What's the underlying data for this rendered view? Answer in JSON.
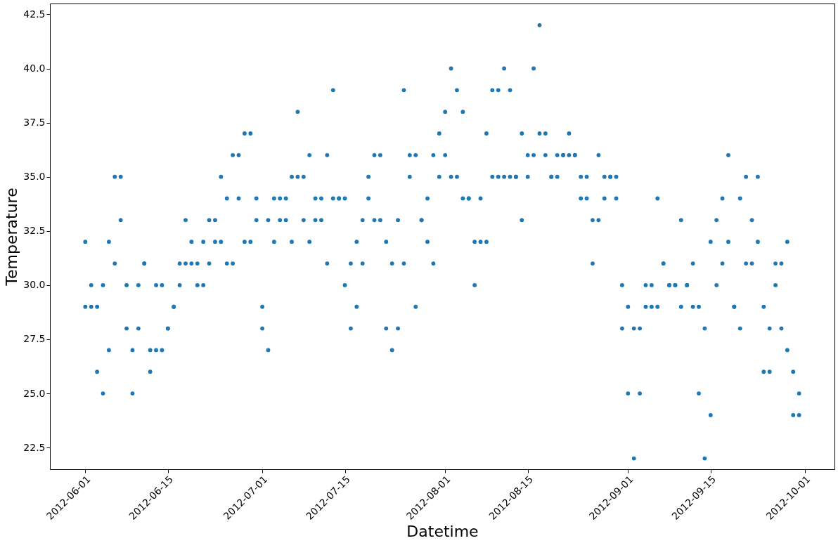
{
  "chart_data": {
    "type": "scatter",
    "xlabel": "Datetime",
    "ylabel": "Temperature",
    "marker": "circle",
    "grid": false,
    "legend": false,
    "xlim": [
      "2012-05-26",
      "2012-10-06"
    ],
    "xticks": [
      "2012-06-01",
      "2012-06-15",
      "2012-07-01",
      "2012-07-15",
      "2012-08-01",
      "2012-08-15",
      "2012-09-01",
      "2012-09-15",
      "2012-10-01"
    ],
    "ylim": [
      21.5,
      43
    ],
    "yticks": [
      {
        "value": 22.5,
        "label": "22.5"
      },
      {
        "value": 25,
        "label": "25.0"
      },
      {
        "value": 27.5,
        "label": "27.5"
      },
      {
        "value": 30,
        "label": "30.0"
      },
      {
        "value": 32.5,
        "label": "32.5"
      },
      {
        "value": 35,
        "label": "35.0"
      },
      {
        "value": 37.5,
        "label": "37.5"
      },
      {
        "value": 40,
        "label": "40.0"
      },
      {
        "value": 42.5,
        "label": "42.5"
      }
    ],
    "series": [
      {
        "color": "#1f77b4",
        "x": [
          "2012-06-01",
          "2012-06-01",
          "2012-06-02",
          "2012-06-02",
          "2012-06-03",
          "2012-06-03",
          "2012-06-04",
          "2012-06-04",
          "2012-06-05",
          "2012-06-05",
          "2012-06-06",
          "2012-06-06",
          "2012-06-07",
          "2012-06-07",
          "2012-06-08",
          "2012-06-08",
          "2012-06-09",
          "2012-06-09",
          "2012-06-10",
          "2012-06-10",
          "2012-06-11",
          "2012-06-11",
          "2012-06-12",
          "2012-06-12",
          "2012-06-13",
          "2012-06-13",
          "2012-06-14",
          "2012-06-14",
          "2012-06-15",
          "2012-06-15",
          "2012-06-16",
          "2012-06-16",
          "2012-06-17",
          "2012-06-17",
          "2012-06-18",
          "2012-06-18",
          "2012-06-19",
          "2012-06-19",
          "2012-06-20",
          "2012-06-20",
          "2012-06-21",
          "2012-06-21",
          "2012-06-22",
          "2012-06-22",
          "2012-06-23",
          "2012-06-23",
          "2012-06-24",
          "2012-06-24",
          "2012-06-25",
          "2012-06-25",
          "2012-06-26",
          "2012-06-26",
          "2012-06-27",
          "2012-06-27",
          "2012-06-28",
          "2012-06-28",
          "2012-06-29",
          "2012-06-29",
          "2012-06-30",
          "2012-06-30",
          "2012-07-01",
          "2012-07-01",
          "2012-07-02",
          "2012-07-02",
          "2012-07-03",
          "2012-07-03",
          "2012-07-04",
          "2012-07-04",
          "2012-07-05",
          "2012-07-05",
          "2012-07-06",
          "2012-07-06",
          "2012-07-07",
          "2012-07-07",
          "2012-07-08",
          "2012-07-08",
          "2012-07-09",
          "2012-07-09",
          "2012-07-10",
          "2012-07-10",
          "2012-07-11",
          "2012-07-11",
          "2012-07-12",
          "2012-07-12",
          "2012-07-13",
          "2012-07-13",
          "2012-07-14",
          "2012-07-14",
          "2012-07-15",
          "2012-07-15",
          "2012-07-16",
          "2012-07-16",
          "2012-07-17",
          "2012-07-17",
          "2012-07-18",
          "2012-07-18",
          "2012-07-19",
          "2012-07-19",
          "2012-07-20",
          "2012-07-20",
          "2012-07-21",
          "2012-07-21",
          "2012-07-22",
          "2012-07-22",
          "2012-07-23",
          "2012-07-23",
          "2012-07-24",
          "2012-07-24",
          "2012-07-25",
          "2012-07-25",
          "2012-07-26",
          "2012-07-26",
          "2012-07-27",
          "2012-07-27",
          "2012-07-28",
          "2012-07-28",
          "2012-07-29",
          "2012-07-29",
          "2012-07-30",
          "2012-07-30",
          "2012-07-31",
          "2012-07-31",
          "2012-08-01",
          "2012-08-01",
          "2012-08-02",
          "2012-08-02",
          "2012-08-03",
          "2012-08-03",
          "2012-08-04",
          "2012-08-04",
          "2012-08-05",
          "2012-08-05",
          "2012-08-06",
          "2012-08-06",
          "2012-08-07",
          "2012-08-07",
          "2012-08-08",
          "2012-08-08",
          "2012-08-09",
          "2012-08-09",
          "2012-08-10",
          "2012-08-10",
          "2012-08-11",
          "2012-08-11",
          "2012-08-12",
          "2012-08-12",
          "2012-08-13",
          "2012-08-13",
          "2012-08-14",
          "2012-08-14",
          "2012-08-15",
          "2012-08-15",
          "2012-08-16",
          "2012-08-16",
          "2012-08-17",
          "2012-08-17",
          "2012-08-18",
          "2012-08-18",
          "2012-08-19",
          "2012-08-19",
          "2012-08-20",
          "2012-08-20",
          "2012-08-21",
          "2012-08-21",
          "2012-08-22",
          "2012-08-22",
          "2012-08-23",
          "2012-08-23",
          "2012-08-24",
          "2012-08-24",
          "2012-08-25",
          "2012-08-25",
          "2012-08-26",
          "2012-08-26",
          "2012-08-27",
          "2012-08-27",
          "2012-08-28",
          "2012-08-28",
          "2012-08-29",
          "2012-08-29",
          "2012-08-30",
          "2012-08-30",
          "2012-08-31",
          "2012-08-31",
          "2012-09-01",
          "2012-09-01",
          "2012-09-02",
          "2012-09-02",
          "2012-09-03",
          "2012-09-03",
          "2012-09-04",
          "2012-09-04",
          "2012-09-05",
          "2012-09-05",
          "2012-09-06",
          "2012-09-06",
          "2012-09-07",
          "2012-09-07",
          "2012-09-08",
          "2012-09-08",
          "2012-09-09",
          "2012-09-09",
          "2012-09-10",
          "2012-09-10",
          "2012-09-11",
          "2012-09-11",
          "2012-09-12",
          "2012-09-12",
          "2012-09-13",
          "2012-09-13",
          "2012-09-14",
          "2012-09-14",
          "2012-09-15",
          "2012-09-15",
          "2012-09-16",
          "2012-09-16",
          "2012-09-17",
          "2012-09-17",
          "2012-09-18",
          "2012-09-18",
          "2012-09-19",
          "2012-09-19",
          "2012-09-20",
          "2012-09-20",
          "2012-09-21",
          "2012-09-21",
          "2012-09-22",
          "2012-09-22",
          "2012-09-23",
          "2012-09-23",
          "2012-09-24",
          "2012-09-24",
          "2012-09-25",
          "2012-09-25",
          "2012-09-26",
          "2012-09-26",
          "2012-09-27",
          "2012-09-27",
          "2012-09-28",
          "2012-09-28",
          "2012-09-29",
          "2012-09-29",
          "2012-09-30",
          "2012-09-30"
        ],
        "values": [
          32,
          29,
          30,
          29,
          29,
          26,
          30,
          25,
          32,
          27,
          35,
          31,
          35,
          33,
          30,
          28,
          27,
          25,
          30,
          28,
          31,
          31,
          27,
          26,
          30,
          27,
          30,
          27,
          28,
          28,
          29,
          29,
          31,
          30,
          33,
          31,
          32,
          31,
          31,
          30,
          32,
          30,
          33,
          31,
          33,
          32,
          35,
          32,
          34,
          31,
          36,
          31,
          36,
          34,
          37,
          32,
          37,
          32,
          34,
          33,
          29,
          28,
          33,
          27,
          34,
          32,
          34,
          33,
          34,
          33,
          35,
          32,
          38,
          35,
          35,
          33,
          36,
          32,
          34,
          33,
          34,
          33,
          36,
          31,
          39,
          34,
          34,
          34,
          34,
          30,
          31,
          28,
          32,
          29,
          33,
          31,
          35,
          34,
          36,
          33,
          36,
          33,
          32,
          28,
          31,
          27,
          33,
          28,
          39,
          31,
          36,
          35,
          36,
          29,
          33,
          33,
          34,
          32,
          36,
          31,
          37,
          35,
          38,
          36,
          40,
          35,
          39,
          35,
          38,
          34,
          34,
          34,
          32,
          30,
          34,
          32,
          37,
          32,
          39,
          35,
          39,
          35,
          40,
          35,
          39,
          35,
          35,
          35,
          37,
          33,
          36,
          35,
          40,
          36,
          42,
          37,
          37,
          36,
          35,
          35,
          36,
          35,
          36,
          36,
          37,
          36,
          36,
          36,
          35,
          34,
          35,
          34,
          33,
          31,
          36,
          33,
          35,
          34,
          35,
          35,
          35,
          34,
          30,
          28,
          29,
          25,
          28,
          22,
          28,
          25,
          30,
          29,
          30,
          29,
          34,
          29,
          31,
          31,
          30,
          30,
          30,
          30,
          33,
          29,
          30,
          30,
          31,
          29,
          29,
          25,
          28,
          22,
          32,
          24,
          33,
          30,
          34,
          31,
          36,
          32,
          29,
          29,
          34,
          28,
          35,
          31,
          33,
          31,
          35,
          32,
          29,
          26,
          28,
          26,
          31,
          30,
          31,
          28,
          32,
          27,
          26,
          24,
          25,
          24
        ]
      }
    ]
  }
}
